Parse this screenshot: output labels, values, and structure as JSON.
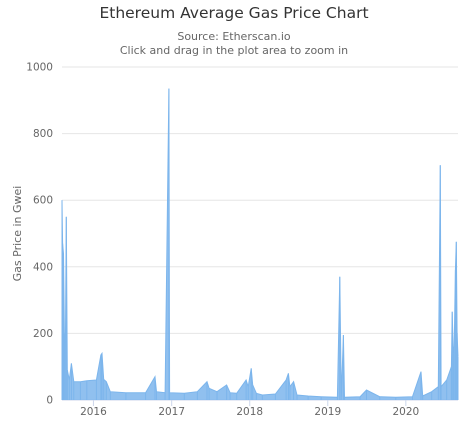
{
  "chart_data": {
    "type": "area",
    "title": "Ethereum Average Gas Price Chart",
    "subtitle_lines": [
      "Source: Etherscan.io",
      "Click and drag in the plot area to zoom in"
    ],
    "xlabel": "",
    "ylabel": "Gas Price in Gwei",
    "ylim": [
      0,
      1000
    ],
    "yticks": [
      0,
      200,
      400,
      600,
      800,
      1000
    ],
    "xlim": [
      "2015-08-07",
      "2020-09-01"
    ],
    "xticks": [
      {
        "date": "2016-01-01",
        "label": "2016"
      },
      {
        "date": "2017-01-01",
        "label": "2017"
      },
      {
        "date": "2018-01-01",
        "label": "2018"
      },
      {
        "date": "2019-01-01",
        "label": "2019"
      },
      {
        "date": "2020-01-01",
        "label": "2020"
      }
    ],
    "grid": true,
    "legend": "none",
    "series_color": "#7cb5ec",
    "series": [
      {
        "values": [
          [
            "2015-08-07",
            600
          ],
          [
            "2015-08-10",
            470
          ],
          [
            "2015-08-14",
            440
          ],
          [
            "2015-08-18",
            200
          ],
          [
            "2015-08-22",
            80
          ],
          [
            "2015-08-27",
            550
          ],
          [
            "2015-09-01",
            90
          ],
          [
            "2015-09-10",
            60
          ],
          [
            "2015-09-20",
            110
          ],
          [
            "2015-10-01",
            55
          ],
          [
            "2015-11-01",
            55
          ],
          [
            "2015-12-01",
            58
          ],
          [
            "2016-01-15",
            60
          ],
          [
            "2016-02-05",
            135
          ],
          [
            "2016-02-10",
            140
          ],
          [
            "2016-02-18",
            62
          ],
          [
            "2016-03-01",
            55
          ],
          [
            "2016-03-20",
            25
          ],
          [
            "2016-06-01",
            22
          ],
          [
            "2016-09-01",
            22
          ],
          [
            "2016-10-15",
            70
          ],
          [
            "2016-10-22",
            25
          ],
          [
            "2016-12-01",
            22
          ],
          [
            "2016-12-19",
            935
          ],
          [
            "2016-12-22",
            22
          ],
          [
            "2017-03-01",
            20
          ],
          [
            "2017-05-01",
            25
          ],
          [
            "2017-06-15",
            55
          ],
          [
            "2017-06-25",
            35
          ],
          [
            "2017-08-01",
            25
          ],
          [
            "2017-09-15",
            45
          ],
          [
            "2017-10-01",
            22
          ],
          [
            "2017-11-01",
            20
          ],
          [
            "2017-12-15",
            60
          ],
          [
            "2017-12-25",
            40
          ],
          [
            "2018-01-08",
            95
          ],
          [
            "2018-01-15",
            45
          ],
          [
            "2018-02-01",
            20
          ],
          [
            "2018-03-01",
            15
          ],
          [
            "2018-05-01",
            18
          ],
          [
            "2018-06-20",
            60
          ],
          [
            "2018-07-01",
            80
          ],
          [
            "2018-07-08",
            40
          ],
          [
            "2018-07-25",
            55
          ],
          [
            "2018-08-10",
            15
          ],
          [
            "2018-10-01",
            12
          ],
          [
            "2018-12-01",
            10
          ],
          [
            "2019-02-15",
            8
          ],
          [
            "2019-02-26",
            370
          ],
          [
            "2019-03-05",
            8
          ],
          [
            "2019-03-15",
            195
          ],
          [
            "2019-03-20",
            8
          ],
          [
            "2019-06-01",
            10
          ],
          [
            "2019-07-01",
            30
          ],
          [
            "2019-09-01",
            10
          ],
          [
            "2019-11-15",
            8
          ],
          [
            "2020-02-01",
            10
          ],
          [
            "2020-03-12",
            85
          ],
          [
            "2020-03-20",
            12
          ],
          [
            "2020-05-01",
            25
          ],
          [
            "2020-06-01",
            40
          ],
          [
            "2020-06-10",
            705
          ],
          [
            "2020-06-14",
            40
          ],
          [
            "2020-07-10",
            60
          ],
          [
            "2020-08-01",
            100
          ],
          [
            "2020-08-05",
            265
          ],
          [
            "2020-08-10",
            140
          ],
          [
            "2020-08-14",
            160
          ],
          [
            "2020-08-20",
            390
          ],
          [
            "2020-08-24",
            475
          ],
          [
            "2020-08-28",
            200
          ],
          [
            "2020-09-01",
            130
          ]
        ]
      }
    ]
  }
}
